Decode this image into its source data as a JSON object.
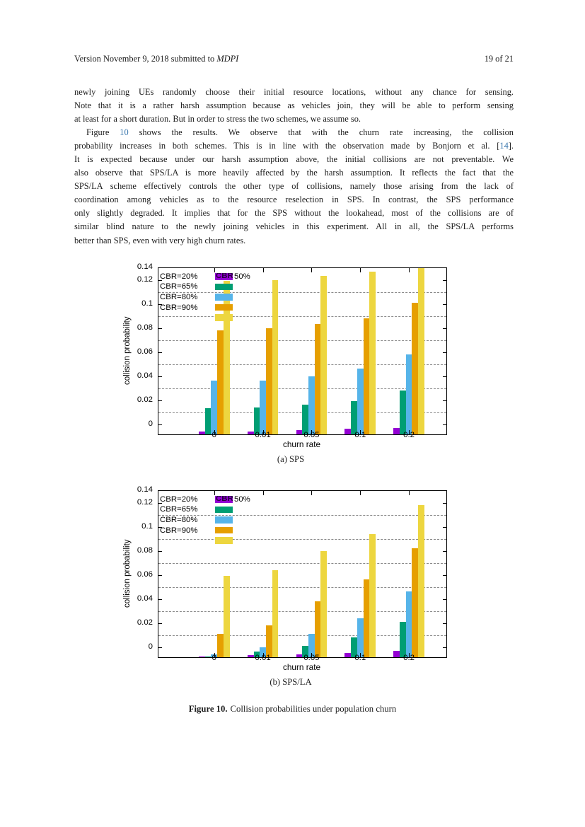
{
  "header": {
    "left_prefix": "Version November 9, 2018 submitted to ",
    "left_journal": "MDPI",
    "right": "19 of 21"
  },
  "body": {
    "paragraphs": [
      {
        "lines": [
          [
            {
              "t": "newly joining UEs randomly choose their initial resource locations, without any chance for sensing."
            }
          ],
          [
            {
              "t": "Note that it is a rather harsh assumption because as vehicles join, they will be able to perform sensing"
            }
          ],
          [
            {
              "t": "at least for a short duration. But in order to stress the two schemes, we assume so."
            }
          ]
        ]
      },
      {
        "lines": [
          [
            {
              "t": "Figure "
            },
            {
              "t": "10",
              "link": true
            },
            {
              "t": " shows the results. We observe that with the churn rate increasing, the collision"
            }
          ],
          [
            {
              "t": "probability increases in both schemes. This is in line with the observation made by Bonjorn et al. ["
            },
            {
              "t": "14",
              "link": true
            },
            {
              "t": "]."
            }
          ],
          [
            {
              "t": "It is expected because under our harsh assumption above, the initial collisions are not preventable. We"
            }
          ],
          [
            {
              "t": "also observe that SPS/LA is more heavily affected by the harsh assumption. It reflects the fact that the"
            }
          ],
          [
            {
              "t": "SPS/LA scheme effectively controls the other type of collisions, namely those arising from the lack of"
            }
          ],
          [
            {
              "t": "coordination among vehicles as to the resource reselection in SPS. In contrast, the SPS performance"
            }
          ],
          [
            {
              "t": "only slightly degraded. It implies that for the SPS without the lookahead, most of the collisions are of"
            }
          ],
          [
            {
              "t": "similar blind nature to the newly joining vehicles in this experiment. All in all, the SPS/LA performs"
            }
          ],
          [
            {
              "t": "better than SPS, even with very high churn rates."
            }
          ]
        ]
      }
    ]
  },
  "link_color": "#3a77ad",
  "chart_data": [
    {
      "type": "bar",
      "caption": "(a) SPS",
      "xlabel": "churn rate",
      "ylabel": "collision probability",
      "categories": [
        "0",
        "0.01",
        "0.05",
        "0.1",
        "0.2"
      ],
      "yticks": [
        "0.14",
        "0.12",
        "0.1",
        "0.08",
        "0.06",
        "0.04",
        "0.02",
        "0"
      ],
      "ylim": [
        -0.0072,
        0.131
      ],
      "grid_values": [
        0.011,
        0.031,
        0.051,
        0.071,
        0.091,
        0.111
      ],
      "grid_color": "#8a8a8a",
      "series": [
        {
          "name": "CBR=20%",
          "color": "#9400d3",
          "values": [
            -0.005,
            -0.005,
            -0.004,
            -0.003,
            -0.002
          ]
        },
        {
          "name": "CBR=65%",
          "color": "#009e73",
          "values": [
            0.014,
            0.015,
            0.017,
            0.02,
            0.029
          ]
        },
        {
          "name": "CBR=80%",
          "color": "#56b4e9",
          "values": [
            0.037,
            0.037,
            0.041,
            0.047,
            0.059
          ]
        },
        {
          "name": "CBR=90%",
          "color": "#e69f00",
          "values": [
            0.079,
            0.081,
            0.084,
            0.089,
            0.102
          ]
        },
        {
          "name": "CBR=50%",
          "color": "#edd63f",
          "values": [
            0.12,
            0.121,
            0.124,
            0.128,
            0.131
          ]
        }
      ],
      "legend": {
        "position": "top-left",
        "rows": [
          {
            "label": "CBR=20%",
            "color": "#9400d3",
            "overlay": "CBR=",
            "suffix": "50%"
          },
          {
            "label": "CBR=65%",
            "color": "#009e73"
          },
          {
            "label": "CBR=80%",
            "color": "#56b4e9"
          },
          {
            "label": "CBR=90%",
            "color": "#e69f00"
          },
          {
            "label": "",
            "color": "#edd63f"
          }
        ]
      }
    },
    {
      "type": "bar",
      "caption": "(b) SPS/LA",
      "xlabel": "churn rate",
      "ylabel": "collision probability",
      "categories": [
        "0",
        "0.01",
        "0.05",
        "0.1",
        "0.2"
      ],
      "yticks": [
        "0.14",
        "0.12",
        "0.1",
        "0.08",
        "0.06",
        "0.04",
        "0.02",
        "0"
      ],
      "ylim": [
        -0.0072,
        0.131
      ],
      "grid_values": [
        0.011,
        0.031,
        0.051,
        0.071,
        0.091,
        0.111
      ],
      "grid_color": "#8a8a8a",
      "series": [
        {
          "name": "CBR=20%",
          "color": "#9400d3",
          "values": [
            -0.007,
            -0.006,
            -0.005,
            -0.004,
            -0.002
          ]
        },
        {
          "name": "CBR=65%",
          "color": "#009e73",
          "values": [
            -0.007,
            -0.003,
            0.002,
            0.009,
            0.022
          ]
        },
        {
          "name": "CBR=80%",
          "color": "#56b4e9",
          "values": [
            -0.005,
            0.001,
            0.012,
            0.025,
            0.047
          ]
        },
        {
          "name": "CBR=90%",
          "color": "#e69f00",
          "values": [
            0.012,
            0.019,
            0.039,
            0.057,
            0.083
          ]
        },
        {
          "name": "CBR=50%",
          "color": "#edd63f",
          "values": [
            0.06,
            0.065,
            0.081,
            0.095,
            0.119
          ]
        }
      ],
      "legend": {
        "position": "top-left",
        "rows": [
          {
            "label": "CBR=20%",
            "color": "#9400d3",
            "overlay": "CBR=",
            "suffix": "50%"
          },
          {
            "label": "CBR=65%",
            "color": "#009e73"
          },
          {
            "label": "CBR=80%",
            "color": "#56b4e9"
          },
          {
            "label": "CBR=90%",
            "color": "#e69f00"
          },
          {
            "label": "",
            "color": "#edd63f"
          }
        ]
      }
    }
  ],
  "figure_caption": {
    "label": "Figure 10.",
    "text": "Collision probabilities under population churn"
  }
}
